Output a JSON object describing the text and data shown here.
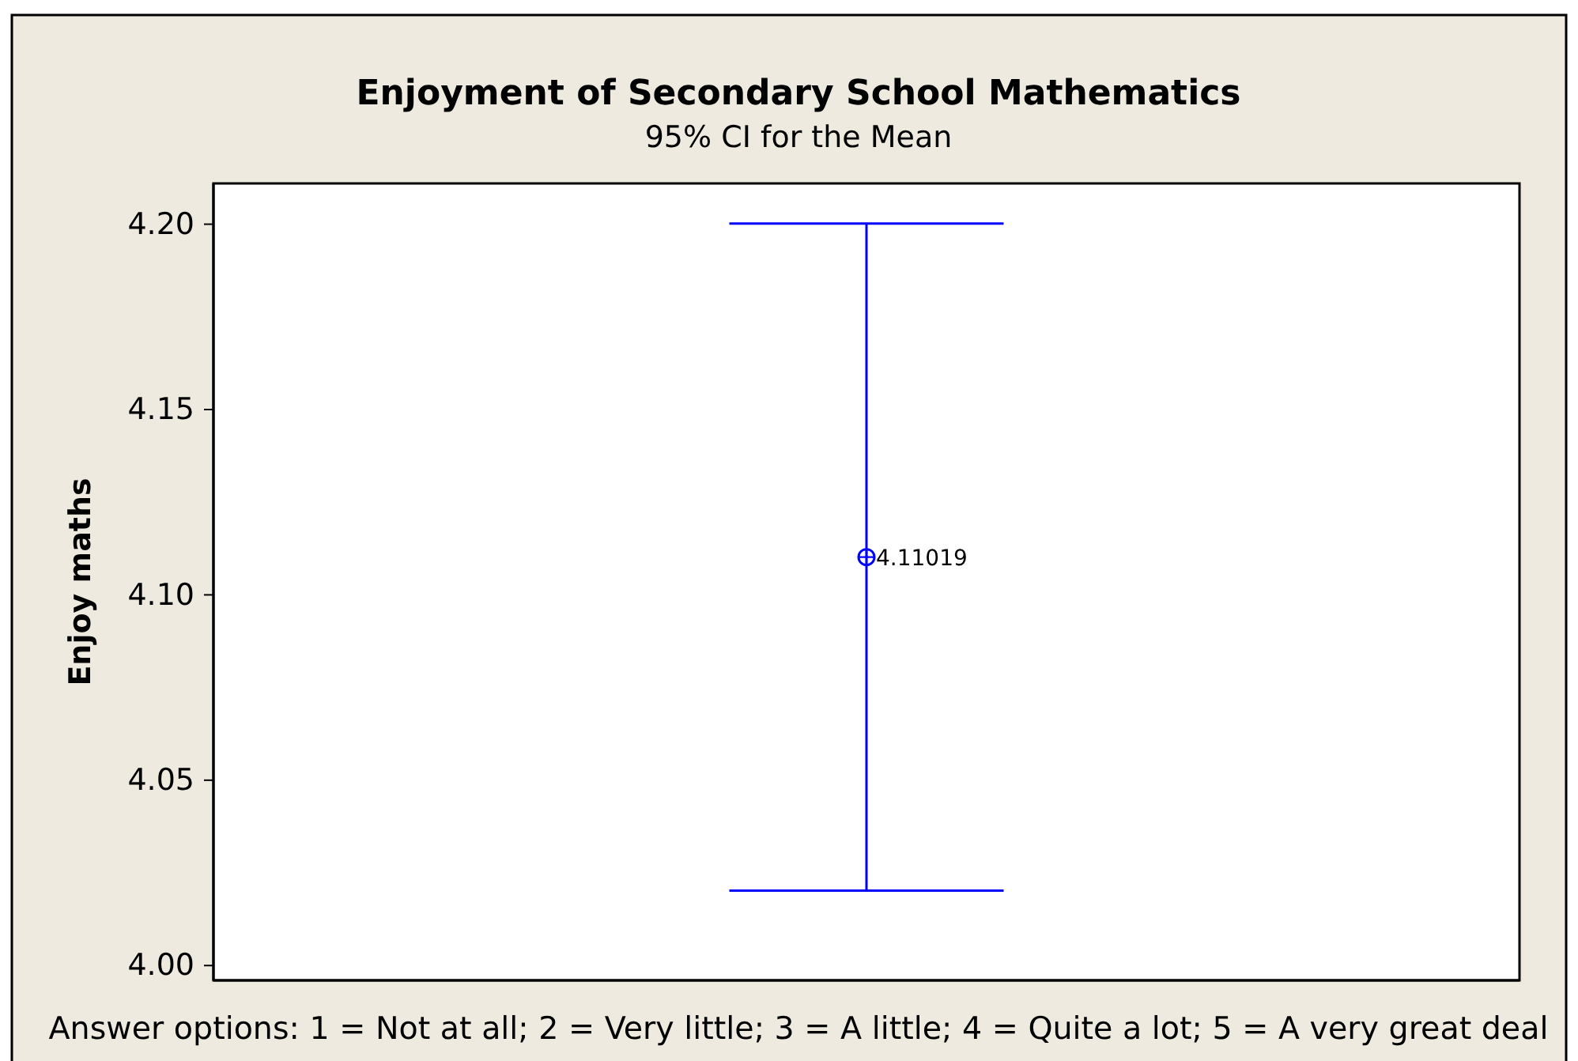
{
  "chart_data": {
    "type": "scatter",
    "title": "Enjoyment of Secondary School Mathematics",
    "subtitle": "95% CI for the Mean",
    "ylabel": "Enjoy maths",
    "annotations": [
      "Answer options: 1 = Not at all; 2 = Very little; 3 = A little; 4 = Quite a lot; 5 = A very great deal"
    ],
    "categories": [
      null
    ],
    "values": [
      4.11019
    ],
    "errors": [
      0.09
    ],
    "color": "#0000ff",
    "marker": "circle",
    "data_labels": true,
    "ylim": [
      3.996,
      4.211
    ],
    "yticks": [
      {
        "value": 4,
        "label": "4.00"
      },
      {
        "value": 4.05,
        "label": "4.05"
      },
      {
        "value": 4.1,
        "label": "4.10"
      },
      {
        "value": 4.15,
        "label": "4.15"
      },
      {
        "value": 4.2,
        "label": "4.20"
      }
    ]
  }
}
